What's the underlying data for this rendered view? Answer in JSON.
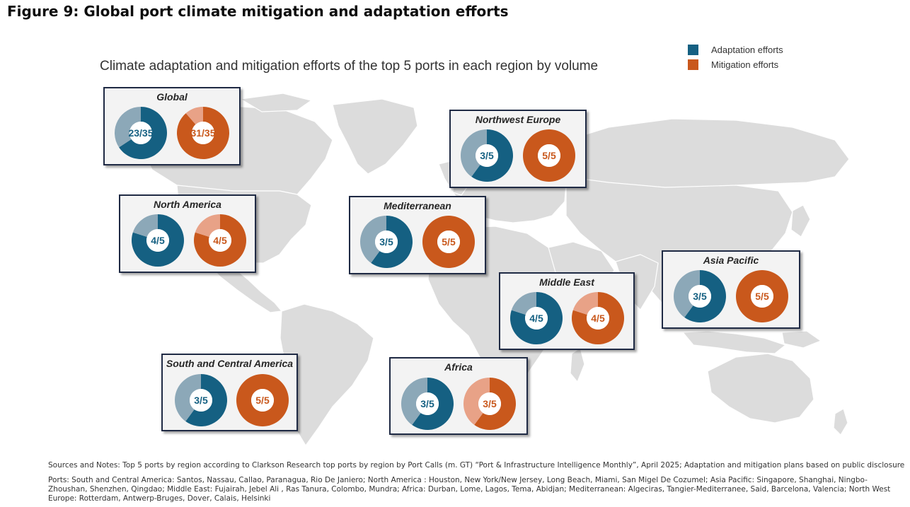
{
  "figure_title": "Figure 9: Global port climate mitigation and adaptation efforts",
  "colors": {
    "adaptation": "#156082",
    "adaptation_light": "#8ca8b8",
    "mitigation": "#c9581c",
    "mitigation_light": "#e8a287",
    "panel_border": "#1f2a44",
    "map_land": "#dcdcdc"
  },
  "chart_data": {
    "type": "pie",
    "title": "Climate adaptation and mitigation efforts of the top 5 ports in each region by volume",
    "legend": {
      "placement": "top-right",
      "entries": [
        "Adaptation efforts",
        "Mitigation efforts"
      ]
    },
    "series": [
      {
        "name": "Adaptation efforts"
      },
      {
        "name": "Mitigation efforts"
      }
    ],
    "regions": [
      {
        "name": "Global",
        "adaptation": {
          "value": 23,
          "total": 35,
          "label": "23/35"
        },
        "mitigation": {
          "value": 31,
          "total": 35,
          "label": "31/35"
        }
      },
      {
        "name": "Northwest Europe",
        "adaptation": {
          "value": 3,
          "total": 5,
          "label": "3/5"
        },
        "mitigation": {
          "value": 5,
          "total": 5,
          "label": "5/5"
        }
      },
      {
        "name": "North America",
        "adaptation": {
          "value": 4,
          "total": 5,
          "label": "4/5"
        },
        "mitigation": {
          "value": 4,
          "total": 5,
          "label": "4/5"
        }
      },
      {
        "name": "Mediterranean",
        "adaptation": {
          "value": 3,
          "total": 5,
          "label": "3/5"
        },
        "mitigation": {
          "value": 5,
          "total": 5,
          "label": "5/5"
        }
      },
      {
        "name": "Asia Pacific",
        "adaptation": {
          "value": 3,
          "total": 5,
          "label": "3/5"
        },
        "mitigation": {
          "value": 5,
          "total": 5,
          "label": "5/5"
        }
      },
      {
        "name": "Middle East",
        "adaptation": {
          "value": 4,
          "total": 5,
          "label": "4/5"
        },
        "mitigation": {
          "value": 4,
          "total": 5,
          "label": "4/5"
        }
      },
      {
        "name": "South and Central America",
        "adaptation": {
          "value": 3,
          "total": 5,
          "label": "3/5"
        },
        "mitigation": {
          "value": 5,
          "total": 5,
          "label": "5/5"
        }
      },
      {
        "name": "Africa",
        "adaptation": {
          "value": 3,
          "total": 5,
          "label": "3/5"
        },
        "mitigation": {
          "value": 3,
          "total": 5,
          "label": "3/5"
        }
      }
    ]
  },
  "notes": {
    "sources": "Sources and Notes: Top 5 ports by region according to Clarkson Research top ports by region by Port Calls (m. GT) “Port & Infrastructure Intelligence Monthly”, April 2025; Adaptation and mitigation plans based on public disclosure",
    "ports": "Ports: South and Central America: Santos, Nassau, Callao, Paranagua, Rio De Janiero; North America : Houston, New York/New Jersey, Long Beach, Miami, San Migel De Cozumel; Asia Pacific: Singapore, Shanghai, Ningbo-Zhoushan, Shenzhen, Qingdao; Middle East: Fujairah, Jebel Ali , Ras Tanura, Colombo, Mundra; Africa: Durban, Lome, Lagos, Tema, Abidjan; Mediterranean: Algeciras, Tangier-Mediterranee, Said, Barcelona, Valencia; North West Europe: Rotterdam, Antwerp-Bruges, Dover, Calais, Helsinki"
  }
}
